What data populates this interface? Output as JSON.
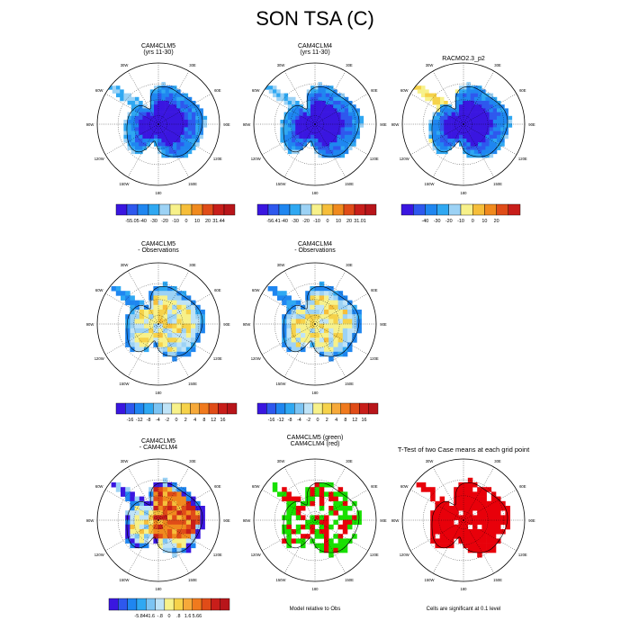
{
  "title": "SON TSA (C)",
  "chart_data": [
    {
      "type": "heatmap",
      "subtitle": [
        "CAM4CLM5",
        "(yrs 11-30)"
      ],
      "field": "ant_field",
      "variant": "A",
      "colorbar": {
        "colors": [
          "#3a16e0",
          "#2e58ee",
          "#1f86f0",
          "#2fa8f2",
          "#9cd2f5",
          "#f7f18a",
          "#f6be3a",
          "#f08a1e",
          "#e04c18",
          "#c81e1a",
          "#b8151a"
        ],
        "labels": [
          "-55.05",
          "-40",
          "-30",
          "-20",
          "-10",
          "0",
          "10",
          "20",
          "31.44"
        ]
      }
    },
    {
      "type": "heatmap",
      "subtitle": [
        "CAM4CLM4",
        "(yrs 11-30)"
      ],
      "field": "ant_field",
      "variant": "A",
      "colorbar": {
        "colors": [
          "#3a16e0",
          "#2e58ee",
          "#1f86f0",
          "#2fa8f2",
          "#9cd2f5",
          "#f7f18a",
          "#f6be3a",
          "#f08a1e",
          "#e04c18",
          "#c81e1a",
          "#b8151a"
        ],
        "labels": [
          "-56.41",
          "-40",
          "-30",
          "-20",
          "-10",
          "0",
          "10",
          "20",
          "31.01"
        ]
      }
    },
    {
      "type": "heatmap",
      "subtitle": [
        "RACMO2.3_p2"
      ],
      "field": "ant_field",
      "variant": "R",
      "colorbar": {
        "colors": [
          "#3a16e0",
          "#2e58ee",
          "#1f86f0",
          "#2fa8f2",
          "#9cd2f5",
          "#f7f18a",
          "#f6be3a",
          "#f08a1e",
          "#e04c18",
          "#c81e1a"
        ],
        "labels": [
          "-40",
          "-30",
          "-20",
          "-10",
          "0",
          "10",
          "20"
        ]
      }
    },
    {
      "type": "heatmap",
      "subtitle": [
        "CAM4CLM5",
        "- Observations"
      ],
      "field": "ant_diff",
      "variant": "D",
      "colorbar": {
        "colors": [
          "#3a16e0",
          "#2e58ee",
          "#1f86f0",
          "#2fa8f2",
          "#7cc4f3",
          "#bfe3f7",
          "#f7f18a",
          "#f6d24a",
          "#f6a93a",
          "#f07a1e",
          "#e04c18",
          "#c81e1a",
          "#b8151a"
        ],
        "labels": [
          "-16",
          "-12",
          "-8",
          "-4",
          "-2",
          "0",
          "2",
          "4",
          "8",
          "12",
          "16"
        ]
      }
    },
    {
      "type": "heatmap",
      "subtitle": [
        "CAM4CLM4",
        "- Observations"
      ],
      "field": "ant_diff",
      "variant": "D",
      "colorbar": {
        "colors": [
          "#3a16e0",
          "#2e58ee",
          "#1f86f0",
          "#2fa8f2",
          "#7cc4f3",
          "#bfe3f7",
          "#f7f18a",
          "#f6d24a",
          "#f6a93a",
          "#f07a1e",
          "#e04c18",
          "#c81e1a",
          "#b8151a"
        ],
        "labels": [
          "-16",
          "-12",
          "-8",
          "-4",
          "-2",
          "0",
          "2",
          "4",
          "8",
          "12",
          "16"
        ]
      }
    },
    {
      "type": "heatmap",
      "subtitle": [
        "CAM4CLM5",
        "- CAM4CLM4"
      ],
      "field": "ant_diff2",
      "variant": "E",
      "colorbar": {
        "colors": [
          "#3a16e0",
          "#2e58ee",
          "#1f86f0",
          "#2fa8f2",
          "#7cc4f3",
          "#bfe3f7",
          "#f7f18a",
          "#f6d24a",
          "#f6a93a",
          "#f07a1e",
          "#e04c18",
          "#c81e1a",
          "#b8151a"
        ],
        "labels": [
          "-5.844",
          "-1.6",
          "-.8",
          "0",
          ".8",
          "1.6",
          "5.66"
        ]
      }
    },
    {
      "type": "heatmap",
      "subtitle": [
        "CAM4CLM5 (green)",
        "CAM4CLM4 (red)"
      ],
      "field": "significance",
      "variant": "G",
      "footer": "Model relative to Obs"
    },
    {
      "type": "heatmap",
      "subtitle": [
        "T-Test of two Case means at each grid point"
      ],
      "field": "significance",
      "variant": "T",
      "footer": "Cells are significant at 0.1 level"
    }
  ],
  "longitude_labels": [
    "30W",
    "30E",
    "60W",
    "60E",
    "90W",
    "90E",
    "120W",
    "120E",
    "150W",
    "150E",
    "180"
  ],
  "lat_labels": [
    "60S",
    "70S",
    "80S"
  ],
  "palette": {
    "land_blue": "#1f86f0",
    "interior": "#3a16e0",
    "ocean": "#ffffff",
    "red": "#e8000a",
    "green": "#18e000"
  }
}
